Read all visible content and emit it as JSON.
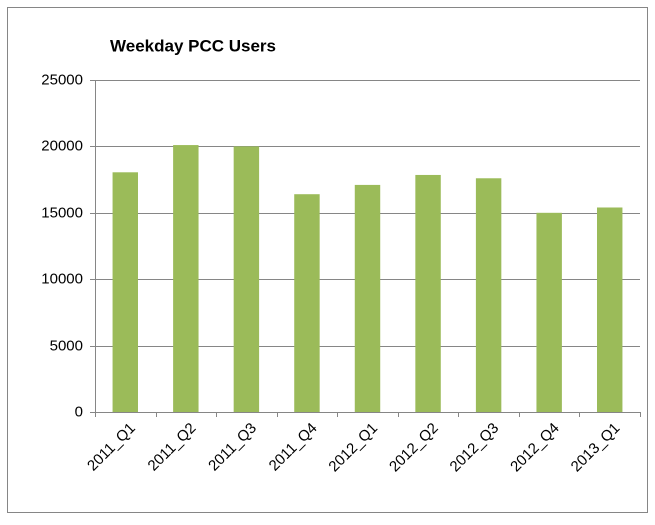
{
  "chart_data": {
    "type": "bar",
    "title": "Weekday PCC Users",
    "categories": [
      "2011_Q1",
      "2011_Q2",
      "2011_Q3",
      "2011_Q4",
      "2012_Q1",
      "2012_Q2",
      "2012_Q3",
      "2012_Q4",
      "2013_Q1"
    ],
    "values": [
      18050,
      20100,
      20000,
      16400,
      17100,
      17850,
      17600,
      15000,
      15400
    ],
    "color": "#9bbb59",
    "ylim": [
      0,
      25000
    ],
    "yticks": [
      0,
      5000,
      10000,
      15000,
      20000,
      25000
    ],
    "grid": true
  }
}
